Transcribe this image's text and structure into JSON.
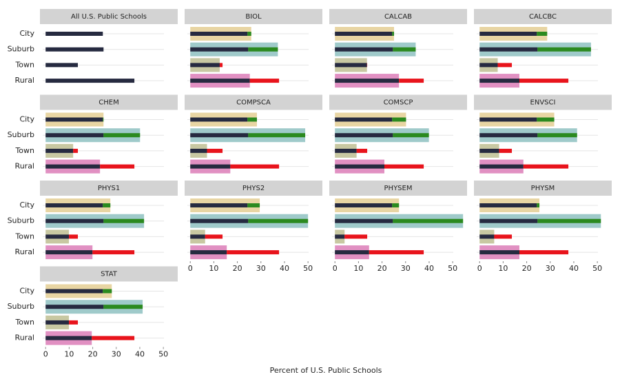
{
  "chart_data": {
    "type": "bar",
    "x_label": "Percent of U.S. Public Schools",
    "categories": [
      "City",
      "Suburb",
      "Town",
      "Rural"
    ],
    "category_colors": [
      "#e8d5a3",
      "#9fcaca",
      "#c8c8a2",
      "#e190c2"
    ],
    "base_color": "#262a40",
    "above_color": "#2b8a1f",
    "below_color": "#e8141c",
    "xlim": [
      -2.4,
      56.1
    ],
    "xticks": [
      0,
      10,
      20,
      30,
      40,
      50
    ],
    "panels": [
      {
        "title": "All U.S. Public Schools",
        "values": [
          24.3,
          24.6,
          13.7,
          37.7
        ]
      },
      {
        "title": "BIOL",
        "values": [
          25.9,
          37.2,
          12.5,
          25.3
        ]
      },
      {
        "title": "CALCAB",
        "values": [
          25.1,
          34.3,
          13.6,
          27.2
        ]
      },
      {
        "title": "CALCBC",
        "values": [
          28.7,
          47.3,
          7.7,
          16.9
        ]
      },
      {
        "title": "CHEM",
        "values": [
          24.6,
          40.1,
          11.7,
          23.1
        ]
      },
      {
        "title": "COMPSCA",
        "values": [
          28.3,
          48.8,
          7.1,
          17.0
        ]
      },
      {
        "title": "COMSCP",
        "values": [
          30.2,
          39.9,
          9.2,
          21.0
        ]
      },
      {
        "title": "ENVSCI",
        "values": [
          31.7,
          41.4,
          8.3,
          18.6
        ]
      },
      {
        "title": "PHYS1",
        "values": [
          27.5,
          41.8,
          9.9,
          19.9
        ]
      },
      {
        "title": "PHYS2",
        "values": [
          29.5,
          50.0,
          6.3,
          15.5
        ]
      },
      {
        "title": "PHYSEM",
        "values": [
          27.2,
          54.4,
          4.1,
          14.5
        ]
      },
      {
        "title": "PHYSM",
        "values": [
          25.4,
          51.5,
          6.2,
          16.9
        ]
      },
      {
        "title": "STAT",
        "values": [
          28.1,
          41.2,
          9.9,
          19.6
        ]
      }
    ]
  }
}
